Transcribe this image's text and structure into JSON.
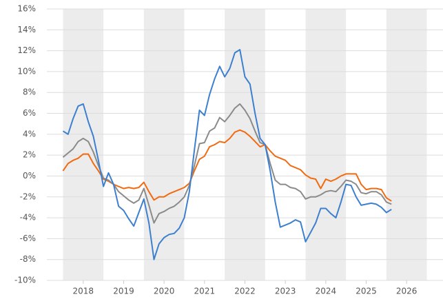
{
  "chart_data": {
    "type": "line",
    "x": [
      2018,
      2018.125,
      2018.25,
      2018.375,
      2018.5,
      2018.625,
      2018.75,
      2018.875,
      2019,
      2019.125,
      2019.25,
      2019.375,
      2019.5,
      2019.625,
      2019.75,
      2019.875,
      2020,
      2020.125,
      2020.25,
      2020.375,
      2020.5,
      2020.625,
      2020.75,
      2020.875,
      2021,
      2021.125,
      2021.25,
      2021.375,
      2021.5,
      2021.625,
      2021.75,
      2021.875,
      2022,
      2022.125,
      2022.25,
      2022.375,
      2022.5,
      2022.625,
      2022.75,
      2022.875,
      2023,
      2023.125,
      2023.25,
      2023.375,
      2023.5,
      2023.625,
      2023.75,
      2023.875,
      2024,
      2024.125,
      2024.25,
      2024.375,
      2024.5,
      2024.625,
      2024.75,
      2024.875,
      2025,
      2025.125,
      2025.25,
      2025.375,
      2025.5,
      2025.625,
      2025.75,
      2025.875,
      2026,
      2026.125
    ],
    "series": [
      {
        "color": "#3c7fcf",
        "values": [
          4.3,
          4.0,
          5.5,
          6.7,
          6.9,
          5.2,
          3.8,
          1.5,
          -1.0,
          0.3,
          -0.8,
          -2.9,
          -3.3,
          -4.1,
          -4.8,
          -3.5,
          -2.2,
          -4.5,
          -8.0,
          -6.5,
          -5.9,
          -5.6,
          -5.5,
          -5.0,
          -4.0,
          -1.5,
          2.5,
          6.3,
          5.8,
          7.8,
          9.3,
          10.5,
          9.5,
          10.3,
          11.8,
          12.1,
          9.5,
          8.8,
          6.0,
          3.6,
          3.0,
          0.5,
          -2.5,
          -4.9,
          -4.7,
          -4.5,
          -4.2,
          -4.4,
          -6.3,
          -5.4,
          -4.5,
          -3.1,
          -3.1,
          -3.6,
          -4.0,
          -2.5,
          -0.8,
          -0.9,
          -2.0,
          -2.8,
          -2.7,
          -2.6,
          -2.7,
          -3.0,
          -3.5,
          -3.2
        ]
      },
      {
        "color": "#8a8a8a",
        "values": [
          1.8,
          2.2,
          2.6,
          3.3,
          3.6,
          3.3,
          2.3,
          1.0,
          -0.2,
          -0.4,
          -0.8,
          -1.5,
          -1.9,
          -2.3,
          -2.6,
          -2.3,
          -1.2,
          -2.8,
          -4.5,
          -3.6,
          -3.4,
          -3.1,
          -2.9,
          -2.5,
          -2.0,
          -0.9,
          1.0,
          3.1,
          3.2,
          4.3,
          4.6,
          5.6,
          5.2,
          5.8,
          6.5,
          6.9,
          6.3,
          5.5,
          4.3,
          3.2,
          3.0,
          1.2,
          -0.4,
          -0.8,
          -0.8,
          -1.1,
          -1.2,
          -1.5,
          -2.2,
          -2.0,
          -2.0,
          -1.8,
          -1.5,
          -1.4,
          -1.5,
          -1.0,
          -0.4,
          -0.5,
          -0.8,
          -1.6,
          -1.7,
          -1.5,
          -1.5,
          -1.8,
          -2.5,
          -2.7
        ]
      },
      {
        "color": "#f26a10",
        "values": [
          0.5,
          1.2,
          1.5,
          1.7,
          2.1,
          2.1,
          1.2,
          0.5,
          -0.3,
          -0.5,
          -0.8,
          -1.0,
          -1.2,
          -1.1,
          -1.2,
          -1.1,
          -0.6,
          -1.5,
          -2.3,
          -2.0,
          -2.0,
          -1.7,
          -1.5,
          -1.3,
          -1.1,
          -0.7,
          0.5,
          1.6,
          1.9,
          2.8,
          3.0,
          3.3,
          3.2,
          3.6,
          4.2,
          4.4,
          4.2,
          3.8,
          3.3,
          2.8,
          3.0,
          2.4,
          1.9,
          1.7,
          1.5,
          1.0,
          0.8,
          0.6,
          0.1,
          -0.2,
          -0.3,
          -1.2,
          -0.3,
          -0.5,
          -0.3,
          0.0,
          0.2,
          0.2,
          0.2,
          -0.8,
          -1.3,
          -1.2,
          -1.2,
          -1.3,
          -2.1,
          -2.4
        ]
      }
    ],
    "xlim": [
      2017.6,
      2027.4
    ],
    "xticks": [
      {
        "value": 2018.5,
        "label": "2018"
      },
      {
        "value": 2019.5,
        "label": "2019"
      },
      {
        "value": 2020.5,
        "label": "2020"
      },
      {
        "value": 2021.5,
        "label": "2021"
      },
      {
        "value": 2022.5,
        "label": "2022"
      },
      {
        "value": 2023.5,
        "label": "2023"
      },
      {
        "value": 2024.5,
        "label": "2024"
      },
      {
        "value": 2025.5,
        "label": "2025"
      },
      {
        "value": 2026.5,
        "label": "2026"
      }
    ],
    "ylim": [
      -10,
      16
    ],
    "yticks": [
      {
        "value": -10,
        "label": "-10%"
      },
      {
        "value": -8,
        "label": "-8%"
      },
      {
        "value": -6,
        "label": "-6%"
      },
      {
        "value": -4,
        "label": "-4%"
      },
      {
        "value": -2,
        "label": "-2%"
      },
      {
        "value": 0,
        "label": "0%"
      },
      {
        "value": 2,
        "label": "2%"
      },
      {
        "value": 4,
        "label": "4%"
      },
      {
        "value": 6,
        "label": "6%"
      },
      {
        "value": 8,
        "label": "8%"
      },
      {
        "value": 10,
        "label": "10%"
      },
      {
        "value": 12,
        "label": "12%"
      },
      {
        "value": 14,
        "label": "14%"
      },
      {
        "value": 16,
        "label": "16%"
      }
    ],
    "grid": true
  }
}
